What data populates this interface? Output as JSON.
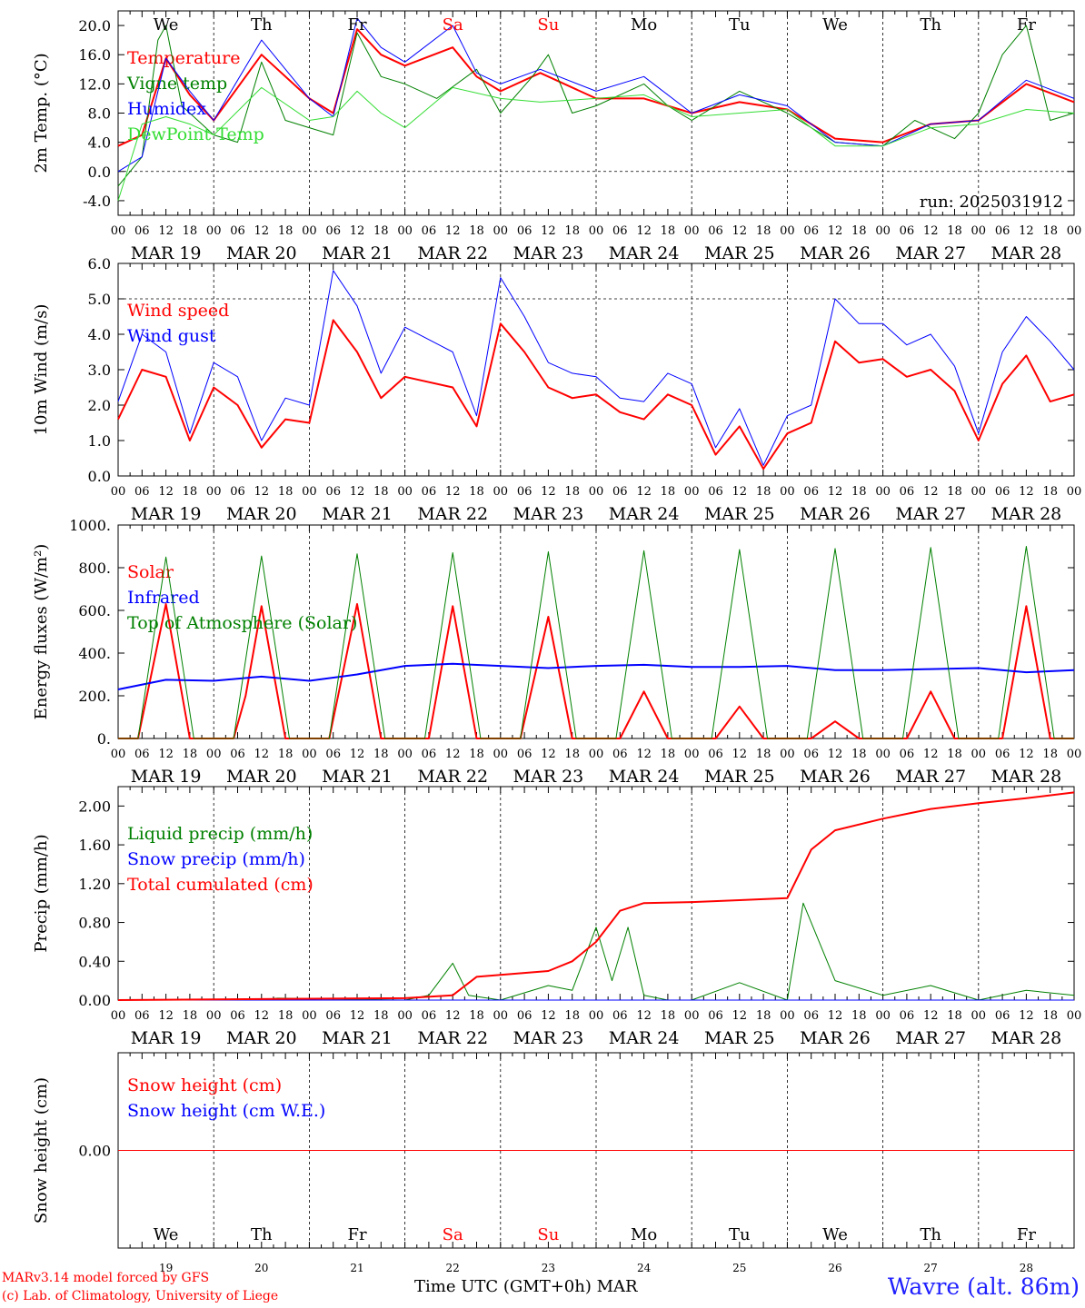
{
  "run_label": "run: 2025031912",
  "footer": {
    "model": "MARv3.14 model forced by GFS",
    "copyright": "(c) Lab. of Climatology, University of Liege",
    "station": "Wavre (alt. 86m)",
    "xtitle": "Time UTC (GMT+0h) MAR"
  },
  "days": [
    {
      "abbr": "We",
      "weekend": false,
      "date": "MAR 19",
      "num": "19"
    },
    {
      "abbr": "Th",
      "weekend": false,
      "date": "MAR 20",
      "num": "20"
    },
    {
      "abbr": "Fr",
      "weekend": false,
      "date": "MAR 21",
      "num": "21"
    },
    {
      "abbr": "Sa",
      "weekend": true,
      "date": "MAR 22",
      "num": "22"
    },
    {
      "abbr": "Su",
      "weekend": true,
      "date": "MAR 23",
      "num": "23"
    },
    {
      "abbr": "Mo",
      "weekend": false,
      "date": "MAR 24",
      "num": "24"
    },
    {
      "abbr": "Tu",
      "weekend": false,
      "date": "MAR 25",
      "num": "25"
    },
    {
      "abbr": "We",
      "weekend": false,
      "date": "MAR 26",
      "num": "26"
    },
    {
      "abbr": "Th",
      "weekend": false,
      "date": "MAR 27",
      "num": "27"
    },
    {
      "abbr": "Fr",
      "weekend": false,
      "date": "MAR 28",
      "num": "28"
    }
  ],
  "hour_ticks": [
    "00",
    "06",
    "12",
    "18"
  ],
  "colors": {
    "weekend": "#ff0000",
    "red": "#ff0000",
    "blue": "#0000ff",
    "green": "#008000",
    "lightgreen": "#33dd33",
    "station": "#2020ff"
  },
  "chart_data": [
    {
      "type": "line",
      "ylabel": "2m Temp. (°C)",
      "ylim": [
        -6,
        22
      ],
      "yticks": [
        "-4.0",
        "0.0",
        "4.0",
        "8.0",
        "12.0",
        "16.0",
        "20.0"
      ],
      "dashed_y": [
        0
      ],
      "show_days": true,
      "x_unit": "hours since MAR 19 00 UTC",
      "series": [
        {
          "name": "Temperature",
          "color": "#ff0000",
          "width": 2,
          "x": [
            0,
            6,
            12,
            18,
            24,
            36,
            48,
            54,
            60,
            66,
            72,
            84,
            90,
            96,
            106,
            120,
            132,
            144,
            156,
            168,
            180,
            192,
            204,
            216,
            228,
            240
          ],
          "y": [
            3.5,
            5,
            15.5,
            10.5,
            7,
            16,
            10,
            8,
            19.5,
            16,
            14.5,
            17,
            13,
            11,
            13.5,
            10,
            10,
            8,
            9.5,
            8.5,
            4.5,
            4,
            6.5,
            7,
            12,
            9.5
          ]
        },
        {
          "name": "Vigne temp",
          "color": "#008000",
          "width": 1,
          "x": [
            0,
            6,
            10,
            12,
            16,
            24,
            30,
            36,
            42,
            48,
            54,
            60,
            66,
            72,
            80,
            90,
            96,
            104,
            108,
            114,
            120,
            132,
            138,
            144,
            156,
            168,
            180,
            192,
            200,
            210,
            216,
            222,
            228,
            234,
            240
          ],
          "y": [
            -2,
            2,
            18,
            20,
            9,
            5,
            4,
            15,
            7,
            6,
            5,
            19,
            13,
            12,
            10,
            14,
            8,
            13,
            16,
            8,
            9,
            12,
            9,
            7,
            11,
            8,
            4,
            3.5,
            7,
            4.5,
            8,
            16,
            20,
            7,
            8
          ]
        },
        {
          "name": "Humidex",
          "color": "#0000ff",
          "width": 1,
          "x": [
            0,
            6,
            12,
            18,
            24,
            36,
            48,
            54,
            60,
            66,
            72,
            84,
            90,
            96,
            106,
            120,
            132,
            144,
            156,
            168,
            180,
            192,
            204,
            216,
            228,
            240
          ],
          "y": [
            0,
            2,
            15.5,
            11,
            7,
            18,
            10,
            7.5,
            21,
            17,
            15,
            20,
            13.5,
            12,
            14,
            11,
            13,
            8,
            10.5,
            9,
            4,
            3.5,
            6.5,
            7,
            12.5,
            10
          ]
        },
        {
          "name": "DewPoint Temp",
          "color": "#33dd33",
          "width": 1,
          "x": [
            0,
            6,
            12,
            18,
            24,
            36,
            48,
            54,
            60,
            66,
            72,
            84,
            96,
            106,
            120,
            132,
            144,
            156,
            168,
            180,
            192,
            204,
            216,
            228,
            240
          ],
          "y": [
            -4,
            6.5,
            7.5,
            6.5,
            5,
            11.5,
            7,
            7.5,
            11,
            8,
            6,
            11.5,
            10,
            9.5,
            10,
            10.5,
            7.5,
            8,
            8.5,
            3.5,
            3.5,
            6,
            6.5,
            8.5,
            8
          ]
        }
      ]
    },
    {
      "type": "line",
      "ylabel": "10m Wind (m/s)",
      "ylim": [
        0,
        6
      ],
      "yticks": [
        "0.0",
        "1.0",
        "2.0",
        "3.0",
        "4.0",
        "5.0",
        "6.0"
      ],
      "dashed_y": [
        5
      ],
      "show_days": false,
      "series": [
        {
          "name": "Wind speed",
          "color": "#ff0000",
          "width": 2,
          "x": [
            0,
            6,
            12,
            18,
            24,
            30,
            36,
            42,
            48,
            54,
            60,
            66,
            72,
            84,
            90,
            96,
            102,
            108,
            114,
            120,
            126,
            132,
            138,
            144,
            150,
            156,
            162,
            168,
            174,
            180,
            186,
            192,
            198,
            204,
            210,
            216,
            222,
            228,
            234,
            240
          ],
          "y": [
            1.6,
            3,
            2.8,
            1,
            2.5,
            2,
            0.8,
            1.6,
            1.5,
            4.4,
            3.5,
            2.2,
            2.8,
            2.5,
            1.4,
            4.3,
            3.5,
            2.5,
            2.2,
            2.3,
            1.8,
            1.6,
            2.3,
            2,
            0.6,
            1.4,
            0.2,
            1.2,
            1.5,
            3.8,
            3.2,
            3.3,
            2.8,
            3,
            2.4,
            1,
            2.6,
            3.4,
            2.1,
            2.3
          ]
        },
        {
          "name": "Wind gust",
          "color": "#0000ff",
          "width": 1,
          "x": [
            0,
            6,
            12,
            18,
            24,
            30,
            36,
            42,
            48,
            54,
            60,
            66,
            72,
            84,
            90,
            96,
            102,
            108,
            114,
            120,
            126,
            132,
            138,
            144,
            150,
            156,
            162,
            168,
            174,
            180,
            186,
            192,
            198,
            204,
            210,
            216,
            222,
            228,
            234,
            240
          ],
          "y": [
            2.1,
            4,
            3.5,
            1.2,
            3.2,
            2.8,
            1,
            2.2,
            2,
            5.8,
            4.8,
            2.9,
            4.2,
            3.5,
            1.7,
            5.6,
            4.5,
            3.2,
            2.9,
            2.8,
            2.2,
            2.1,
            2.9,
            2.6,
            0.8,
            1.9,
            0.3,
            1.7,
            2,
            5,
            4.3,
            4.3,
            3.7,
            4,
            3.1,
            1.2,
            3.5,
            4.5,
            3.8,
            3
          ]
        }
      ]
    },
    {
      "type": "line",
      "ylabel": "Energy fluxes (W/m²)",
      "ylim": [
        0,
        1000
      ],
      "yticks": [
        "0.",
        "200.",
        "400.",
        "600.",
        "800.",
        "1000."
      ],
      "dashed_y": [],
      "show_days": false,
      "series": [
        {
          "name": "Solar",
          "color": "#ff0000",
          "width": 2,
          "x": [
            0,
            5,
            12,
            18,
            24,
            29,
            32,
            36,
            42,
            48,
            53,
            60,
            66,
            72,
            78,
            84,
            90,
            96,
            101,
            108,
            114,
            120,
            126,
            132,
            138,
            144,
            150,
            156,
            162,
            168,
            174,
            180,
            186,
            192,
            198,
            204,
            210,
            216,
            222,
            228,
            234,
            240
          ],
          "y": [
            0,
            0,
            630,
            0,
            0,
            0,
            200,
            620,
            0,
            0,
            0,
            630,
            0,
            0,
            0,
            620,
            0,
            0,
            0,
            570,
            0,
            0,
            0,
            220,
            0,
            0,
            0,
            150,
            0,
            0,
            0,
            80,
            0,
            0,
            0,
            220,
            0,
            0,
            0,
            620,
            0,
            0
          ]
        },
        {
          "name": "Infrared",
          "color": "#0000ff",
          "width": 2,
          "x": [
            0,
            12,
            24,
            36,
            48,
            60,
            72,
            84,
            96,
            108,
            120,
            132,
            144,
            156,
            168,
            180,
            192,
            204,
            216,
            228,
            240
          ],
          "y": [
            230,
            275,
            270,
            290,
            270,
            300,
            340,
            350,
            340,
            330,
            340,
            345,
            335,
            335,
            340,
            320,
            320,
            325,
            330,
            310,
            320
          ]
        },
        {
          "name": "Top of Atmosphere (Solar)",
          "color": "#008000",
          "width": 1,
          "x": [
            0,
            5,
            12,
            19,
            24,
            29,
            36,
            43,
            48,
            53,
            60,
            67,
            72,
            77,
            84,
            91,
            96,
            101,
            108,
            115,
            120,
            125,
            132,
            139,
            144,
            149,
            156,
            163,
            168,
            173,
            180,
            187,
            192,
            197,
            204,
            211,
            216,
            221,
            228,
            235,
            240
          ],
          "y": [
            0,
            0,
            850,
            0,
            0,
            0,
            855,
            0,
            0,
            0,
            865,
            0,
            0,
            0,
            870,
            0,
            0,
            0,
            875,
            0,
            0,
            0,
            880,
            0,
            0,
            0,
            885,
            0,
            0,
            0,
            890,
            0,
            0,
            0,
            895,
            0,
            0,
            0,
            900,
            0,
            0
          ]
        }
      ]
    },
    {
      "type": "line",
      "ylabel": "Precip (mm/h)",
      "ylim": [
        0,
        2.2
      ],
      "yticks": [
        "0.00",
        "0.40",
        "0.80",
        "1.20",
        "1.60",
        "2.00"
      ],
      "dashed_y": [],
      "show_days": false,
      "series": [
        {
          "name": "Liquid precip (mm/h)",
          "color": "#008000",
          "width": 1,
          "x": [
            0,
            36,
            40,
            72,
            78,
            84,
            88,
            96,
            108,
            114,
            120,
            124,
            128,
            132,
            138,
            144,
            156,
            168,
            172,
            180,
            192,
            204,
            216,
            228,
            240
          ],
          "y": [
            0,
            0,
            0.02,
            0,
            0.05,
            0.38,
            0.05,
            0,
            0.15,
            0.1,
            0.75,
            0.2,
            0.75,
            0.05,
            0,
            0,
            0.18,
            0,
            1,
            0.2,
            0.05,
            0.15,
            0,
            0.1,
            0.05
          ]
        },
        {
          "name": "Snow precip (mm/h)",
          "color": "#0000ff",
          "width": 1,
          "x": [
            0,
            240
          ],
          "y": [
            0,
            0
          ]
        },
        {
          "name": "Total cumulated (cm)",
          "color": "#ff0000",
          "width": 2,
          "x": [
            0,
            36,
            72,
            84,
            90,
            96,
            108,
            114,
            120,
            126,
            132,
            144,
            156,
            168,
            174,
            180,
            192,
            204,
            216,
            228,
            240
          ],
          "y": [
            0,
            0.01,
            0.02,
            0.05,
            0.24,
            0.26,
            0.3,
            0.4,
            0.6,
            0.92,
            1,
            1.01,
            1.03,
            1.05,
            1.55,
            1.75,
            1.87,
            1.97,
            2.03,
            2.08,
            2.14
          ]
        }
      ]
    },
    {
      "type": "line",
      "ylabel": "Snow height (cm)",
      "ylim": [
        -1,
        1
      ],
      "yticks": [
        "0.00"
      ],
      "dashed_y": [],
      "show_days": false,
      "series": [
        {
          "name": "Snow height (cm)",
          "color": "#ff0000",
          "width": 1,
          "x": [
            0,
            240
          ],
          "y": [
            0,
            0
          ]
        },
        {
          "name": "Snow height (cm W.E.)",
          "color": "#0000ff",
          "width": 0,
          "x": [],
          "y": []
        }
      ]
    }
  ]
}
